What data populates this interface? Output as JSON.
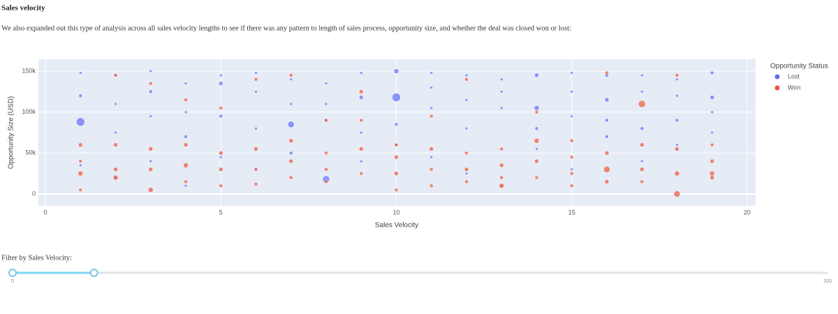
{
  "page": {
    "heading": "Sales velocity",
    "intro": "We also expanded out this type of analysis across all sales velocity lengths to see if there was any pattern to length of sales process, opportunity size, and whether the deal was closed won or lost:",
    "slider": {
      "label": "Filter by Sales Velocity:",
      "min": 0,
      "max": 200,
      "value": [
        0,
        20
      ]
    }
  },
  "chart_data": {
    "type": "scatter",
    "xlabel": "Sales Velocity",
    "ylabel": "Opportunity Size (USD)",
    "legend_title": "Opportunity Status",
    "legend": "right",
    "grid": true,
    "xlim": [
      -0.2,
      20.24
    ],
    "xticks": [
      0,
      5,
      10,
      15,
      20
    ],
    "ylim": [
      -14500,
      164500
    ],
    "yticks": [
      0,
      {
        "value": 50000,
        "label": "50k"
      },
      {
        "value": 100000,
        "label": "100k"
      },
      {
        "value": 150000,
        "label": "150k"
      }
    ],
    "series": [
      {
        "name": "Lost",
        "color": "#636efa",
        "x": [
          1,
          1,
          1,
          1,
          2,
          2,
          2,
          2,
          3,
          3,
          3,
          3,
          4,
          4,
          4,
          4,
          5,
          5,
          5,
          5,
          6,
          6,
          6,
          6,
          7,
          7,
          7,
          7,
          8,
          8,
          8,
          8,
          9,
          9,
          9,
          9,
          10,
          10,
          10,
          10,
          11,
          11,
          11,
          11,
          12,
          12,
          12,
          12,
          13,
          13,
          13,
          13,
          14,
          14,
          14,
          14,
          15,
          15,
          15,
          15,
          16,
          16,
          16,
          16,
          17,
          17,
          17,
          17,
          18,
          18,
          18,
          18,
          19,
          19,
          19,
          19
        ],
        "values": [
          148000,
          120000,
          88000,
          35000,
          145000,
          110000,
          75000,
          20000,
          150000,
          125000,
          95000,
          40000,
          135000,
          100000,
          70000,
          10000,
          145000,
          135000,
          95000,
          45000,
          148000,
          125000,
          80000,
          30000,
          140000,
          110000,
          85000,
          50000,
          135000,
          110000,
          90000,
          18000,
          148000,
          118000,
          75000,
          40000,
          150000,
          118000,
          85000,
          60000,
          148000,
          130000,
          105000,
          45000,
          145000,
          115000,
          80000,
          25000,
          140000,
          125000,
          105000,
          10000,
          145000,
          105000,
          80000,
          55000,
          148000,
          125000,
          95000,
          30000,
          145000,
          115000,
          90000,
          70000,
          145000,
          125000,
          80000,
          40000,
          140000,
          120000,
          90000,
          60000,
          148000,
          118000,
          100000,
          75000
        ],
        "sizes": [
          4,
          5,
          12,
          4,
          4,
          4,
          4,
          4,
          4,
          5,
          4,
          4,
          4,
          4,
          5,
          4,
          4,
          6,
          5,
          4,
          4,
          4,
          4,
          4,
          4,
          4,
          9,
          5,
          4,
          4,
          4,
          10,
          4,
          6,
          4,
          4,
          7,
          12,
          5,
          4,
          4,
          4,
          4,
          4,
          4,
          4,
          4,
          4,
          4,
          4,
          4,
          4,
          6,
          7,
          5,
          4,
          4,
          4,
          4,
          4,
          5,
          6,
          5,
          5,
          4,
          4,
          5,
          4,
          4,
          4,
          5,
          4,
          5,
          6,
          4,
          4
        ]
      },
      {
        "name": "Won",
        "color": "#ef553b",
        "x": [
          1,
          1,
          1,
          1,
          2,
          2,
          2,
          2,
          3,
          3,
          3,
          3,
          4,
          4,
          4,
          4,
          5,
          5,
          5,
          5,
          6,
          6,
          6,
          6,
          7,
          7,
          7,
          7,
          8,
          8,
          8,
          8,
          9,
          9,
          9,
          9,
          10,
          10,
          10,
          10,
          11,
          11,
          11,
          11,
          12,
          12,
          12,
          12,
          13,
          13,
          13,
          13,
          14,
          14,
          14,
          14,
          15,
          15,
          15,
          15,
          16,
          16,
          16,
          16,
          17,
          17,
          17,
          17,
          18,
          18,
          18,
          18,
          19,
          19,
          19,
          19
        ],
        "values": [
          60000,
          40000,
          25000,
          5000,
          145000,
          60000,
          30000,
          20000,
          135000,
          55000,
          30000,
          5000,
          115000,
          60000,
          35000,
          15000,
          105000,
          50000,
          30000,
          10000,
          140000,
          55000,
          30000,
          12000,
          145000,
          65000,
          40000,
          20000,
          90000,
          50000,
          30000,
          15000,
          125000,
          90000,
          55000,
          25000,
          60000,
          45000,
          25000,
          5000,
          95000,
          55000,
          30000,
          10000,
          140000,
          50000,
          30000,
          15000,
          55000,
          35000,
          20000,
          10000,
          100000,
          65000,
          40000,
          20000,
          65000,
          45000,
          25000,
          10000,
          148000,
          50000,
          30000,
          15000,
          110000,
          60000,
          30000,
          15000,
          145000,
          55000,
          25000,
          0,
          60000,
          40000,
          25000,
          20000
        ],
        "sizes": [
          6,
          5,
          7,
          5,
          5,
          6,
          6,
          7,
          5,
          6,
          6,
          7,
          5,
          6,
          7,
          5,
          5,
          6,
          6,
          5,
          5,
          6,
          5,
          5,
          5,
          6,
          6,
          5,
          5,
          5,
          5,
          5,
          6,
          5,
          6,
          5,
          5,
          6,
          6,
          5,
          5,
          6,
          5,
          5,
          5,
          5,
          6,
          5,
          5,
          6,
          5,
          7,
          5,
          7,
          6,
          5,
          5,
          5,
          5,
          5,
          5,
          6,
          9,
          6,
          10,
          6,
          6,
          5,
          5,
          6,
          7,
          9,
          5,
          6,
          7,
          6
        ]
      }
    ]
  }
}
